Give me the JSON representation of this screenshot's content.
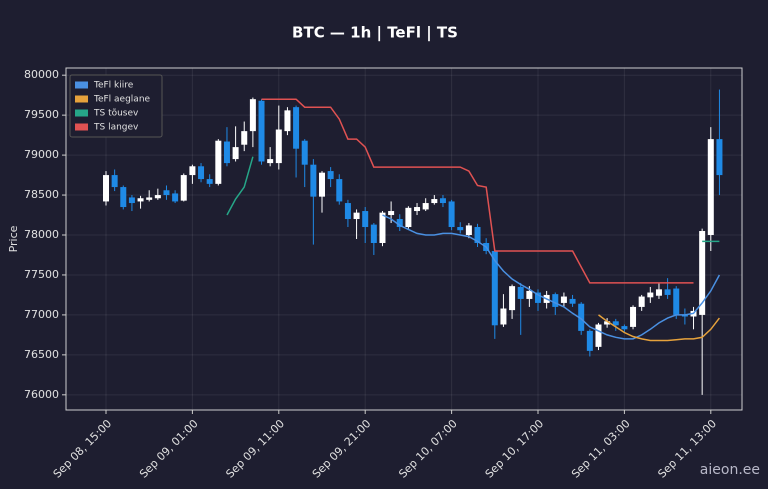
{
  "chart_data": {
    "type": "candlestick",
    "title": "BTC — 1h  |  TeFl  |  TS",
    "y_label": "Price",
    "watermark": "aieon.ee",
    "categories": [
      "Sep 08, 15:00",
      "Sep 08, 16:00",
      "Sep 08, 17:00",
      "Sep 08, 18:00",
      "Sep 08, 19:00",
      "Sep 08, 20:00",
      "Sep 08, 21:00",
      "Sep 08, 22:00",
      "Sep 08, 23:00",
      "Sep 09, 00:00",
      "Sep 09, 01:00",
      "Sep 09, 02:00",
      "Sep 09, 03:00",
      "Sep 09, 04:00",
      "Sep 09, 05:00",
      "Sep 09, 06:00",
      "Sep 09, 07:00",
      "Sep 09, 08:00",
      "Sep 09, 09:00",
      "Sep 09, 10:00",
      "Sep 09, 11:00",
      "Sep 09, 12:00",
      "Sep 09, 13:00",
      "Sep 09, 14:00",
      "Sep 09, 15:00",
      "Sep 09, 16:00",
      "Sep 09, 17:00",
      "Sep 09, 18:00",
      "Sep 09, 19:00",
      "Sep 09, 20:00",
      "Sep 09, 21:00",
      "Sep 09, 22:00",
      "Sep 09, 23:00",
      "Sep 10, 00:00",
      "Sep 10, 01:00",
      "Sep 10, 02:00",
      "Sep 10, 03:00",
      "Sep 10, 04:00",
      "Sep 10, 05:00",
      "Sep 10, 06:00",
      "Sep 10, 07:00",
      "Sep 10, 08:00",
      "Sep 10, 09:00",
      "Sep 10, 10:00",
      "Sep 10, 11:00",
      "Sep 10, 12:00",
      "Sep 10, 13:00",
      "Sep 10, 14:00",
      "Sep 10, 15:00",
      "Sep 10, 16:00",
      "Sep 10, 17:00",
      "Sep 10, 18:00",
      "Sep 10, 19:00",
      "Sep 10, 20:00",
      "Sep 10, 21:00",
      "Sep 10, 22:00",
      "Sep 10, 23:00",
      "Sep 11, 00:00",
      "Sep 11, 01:00",
      "Sep 11, 02:00",
      "Sep 11, 03:00",
      "Sep 11, 04:00",
      "Sep 11, 05:00",
      "Sep 11, 06:00",
      "Sep 11, 07:00",
      "Sep 11, 08:00",
      "Sep 11, 09:00",
      "Sep 11, 10:00",
      "Sep 11, 11:00",
      "Sep 11, 12:00",
      "Sep 11, 13:00",
      "Sep 11, 14:00"
    ],
    "up_color": "#ffffff",
    "down_color": "#1f8ae6",
    "open": [
      78420,
      78750,
      78600,
      78470,
      78420,
      78440,
      78460,
      78560,
      78520,
      78430,
      78750,
      78860,
      78700,
      78640,
      79170,
      78950,
      79130,
      79300,
      79680,
      78900,
      78900,
      79300,
      79600,
      79180,
      78880,
      78480,
      78800,
      78700,
      78400,
      78200,
      78300,
      78130,
      77900,
      78250,
      78200,
      78100,
      78300,
      78320,
      78400,
      78460,
      78420,
      78100,
      78000,
      78100,
      77900,
      77800,
      76880,
      77060,
      77350,
      77200,
      77280,
      77150,
      77260,
      77150,
      77200,
      77140,
      76800,
      76600,
      76880,
      76920,
      76860,
      76850,
      77100,
      77220,
      77240,
      77320,
      77330,
      77000,
      76980,
      77000,
      78000,
      79200
    ],
    "high": [
      78800,
      78820,
      78620,
      78500,
      78490,
      78560,
      78580,
      78620,
      78560,
      78770,
      78880,
      78900,
      78760,
      79200,
      79350,
      79360,
      79420,
      79720,
      79700,
      79100,
      79620,
      79600,
      79620,
      79200,
      78950,
      78800,
      78850,
      78760,
      78440,
      78320,
      78350,
      78150,
      78300,
      78420,
      78260,
      78360,
      78400,
      78460,
      78500,
      78500,
      78440,
      78160,
      78150,
      78140,
      77960,
      77820,
      77260,
      77380,
      77400,
      77360,
      77320,
      77300,
      77280,
      77280,
      77250,
      77160,
      76820,
      76900,
      76960,
      76950,
      76880,
      77120,
      77250,
      77350,
      77400,
      77460,
      77360,
      77080,
      77100,
      78080,
      79350,
      79820
    ],
    "low": [
      78370,
      78550,
      78320,
      78300,
      78330,
      78420,
      78440,
      78440,
      78400,
      78420,
      78640,
      78660,
      78600,
      78620,
      78860,
      78920,
      79050,
      79100,
      78880,
      78860,
      78820,
      79250,
      78720,
      78600,
      77880,
      78280,
      78600,
      78380,
      78100,
      77950,
      77900,
      77750,
      77860,
      78150,
      78050,
      78080,
      78250,
      78300,
      78380,
      78350,
      78060,
      78020,
      77960,
      77850,
      77760,
      76700,
      76850,
      76950,
      76750,
      77100,
      77050,
      77080,
      77000,
      77100,
      77100,
      76750,
      76480,
      76560,
      76840,
      76800,
      76780,
      76820,
      77050,
      77150,
      77200,
      77200,
      76950,
      76880,
      76820,
      76000,
      77800,
      78500
    ],
    "close": [
      78750,
      78600,
      78350,
      78400,
      78460,
      78470,
      78500,
      78500,
      78420,
      78750,
      78860,
      78700,
      78640,
      79180,
      78900,
      79100,
      79300,
      79700,
      78920,
      78950,
      79320,
      79560,
      79080,
      78880,
      78480,
      78780,
      78700,
      78420,
      78200,
      78280,
      78100,
      77900,
      78280,
      78300,
      78100,
      78340,
      78350,
      78400,
      78450,
      78400,
      78100,
      78060,
      78120,
      77900,
      77800,
      76870,
      77080,
      77360,
      77200,
      77300,
      77150,
      77250,
      77100,
      77230,
      77140,
      76800,
      76550,
      76880,
      76920,
      76870,
      76820,
      77100,
      77230,
      77280,
      77320,
      77250,
      77000,
      76980,
      77050,
      78050,
      79200,
      78750
    ],
    "series": [
      {
        "name": "TeFl kiire",
        "color": "#4a90e2",
        "values": [
          null,
          null,
          null,
          null,
          null,
          null,
          null,
          null,
          null,
          null,
          null,
          null,
          null,
          null,
          null,
          null,
          null,
          null,
          null,
          null,
          null,
          null,
          null,
          null,
          null,
          null,
          null,
          null,
          null,
          null,
          null,
          null,
          78250,
          78200,
          78120,
          78070,
          78020,
          78000,
          78000,
          78020,
          78020,
          78000,
          77980,
          77920,
          77850,
          77680,
          77550,
          77450,
          77380,
          77320,
          77250,
          77200,
          77150,
          77100,
          77020,
          76950,
          76850,
          76800,
          76750,
          76720,
          76700,
          76700,
          76750,
          76820,
          76900,
          76960,
          77000,
          77000,
          77020,
          77150,
          77300,
          77500
        ]
      },
      {
        "name": "TeFl aeglane",
        "color": "#e6a23c",
        "values": [
          null,
          null,
          null,
          null,
          null,
          null,
          null,
          null,
          null,
          null,
          null,
          null,
          null,
          null,
          null,
          null,
          null,
          null,
          null,
          null,
          null,
          null,
          null,
          null,
          null,
          null,
          null,
          null,
          null,
          null,
          null,
          null,
          null,
          null,
          null,
          null,
          null,
          null,
          null,
          null,
          null,
          null,
          null,
          null,
          null,
          null,
          null,
          null,
          null,
          null,
          null,
          null,
          null,
          null,
          null,
          null,
          null,
          77000,
          76920,
          76850,
          76780,
          76730,
          76700,
          76680,
          76680,
          76680,
          76690,
          76700,
          76700,
          76720,
          76820,
          76960
        ]
      },
      {
        "name": "TS tõusev",
        "color": "#26a688",
        "values": [
          null,
          null,
          null,
          null,
          null,
          null,
          null,
          null,
          null,
          null,
          null,
          null,
          null,
          null,
          78250,
          78450,
          78600,
          78980,
          null,
          null,
          null,
          null,
          null,
          null,
          null,
          null,
          null,
          null,
          null,
          null,
          null,
          null,
          null,
          null,
          null,
          null,
          null,
          null,
          null,
          null,
          null,
          null,
          null,
          null,
          null,
          null,
          null,
          null,
          null,
          null,
          null,
          null,
          null,
          null,
          null,
          null,
          null,
          null,
          null,
          null,
          null,
          null,
          null,
          null,
          null,
          null,
          null,
          null,
          null,
          77920,
          77920,
          77920
        ]
      },
      {
        "name": "TS langev",
        "color": "#e05252",
        "values": [
          null,
          null,
          null,
          null,
          null,
          null,
          null,
          null,
          null,
          null,
          null,
          null,
          null,
          null,
          null,
          null,
          null,
          null,
          79700,
          79700,
          79700,
          79700,
          79700,
          79600,
          79600,
          79600,
          79600,
          79450,
          79200,
          79200,
          79100,
          78850,
          78850,
          78850,
          78850,
          78850,
          78850,
          78850,
          78850,
          78850,
          78850,
          78850,
          78800,
          78620,
          78600,
          77800,
          77800,
          77800,
          77800,
          77800,
          77800,
          77800,
          77800,
          77800,
          77800,
          77600,
          77400,
          77400,
          77400,
          77400,
          77400,
          77400,
          77400,
          77400,
          77400,
          77400,
          77400,
          77400,
          77400,
          null,
          null,
          null
        ]
      }
    ],
    "ylim": [
      75810,
      80090
    ],
    "yticks": [
      76000,
      76500,
      77000,
      77500,
      78000,
      78500,
      79000,
      79500,
      80000
    ],
    "grid": true,
    "legend": "upper left"
  }
}
